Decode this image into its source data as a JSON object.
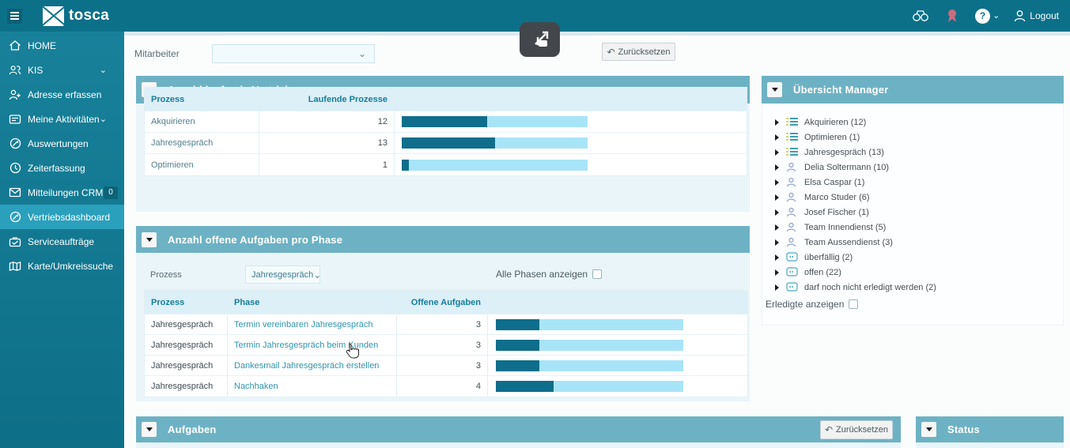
{
  "colors": {
    "accent": "#0c7089",
    "panel_header": "#6db2c4",
    "bar_fill": "#0e6e8c",
    "bar_track": "#a8e4f8",
    "active_nav": "#2aa0bc",
    "badge_bg": "#0b6478",
    "ribbon_red": "#c96c7c"
  },
  "topbar": {
    "brand": "tosca",
    "logout_label": "Logout",
    "help_label": "?"
  },
  "sidebar": {
    "items": [
      {
        "label": "HOME"
      },
      {
        "label": "KIS",
        "chevron": "⌄"
      },
      {
        "label": "Adresse erfassen"
      },
      {
        "label": "Meine Aktivitäten",
        "chevron": "⌄"
      },
      {
        "label": "Auswertungen"
      },
      {
        "label": "Zeiterfassung"
      },
      {
        "label": "Mitteilungen CRM",
        "badge": "0"
      },
      {
        "label": "Vertriebsdashboard"
      },
      {
        "label": "Serviceaufträge"
      },
      {
        "label": "Karte/Umkreissuche"
      }
    ]
  },
  "filter": {
    "label": "Mitarbeiter",
    "value": "",
    "reset_label": "Zurücksetzen",
    "undo_glyph": "↶",
    "chevron": "⌄"
  },
  "panel1": {
    "title": "Anzahl laufende Vertriebsprozesse",
    "columns": {
      "process": "Prozess",
      "running": "Laufende Prozesse"
    },
    "rows": [
      {
        "process": "Akquirieren",
        "count": "12",
        "pct": 46
      },
      {
        "process": "Jahresgespräch",
        "count": "13",
        "pct": 50
      },
      {
        "process": "Optimieren",
        "count": "1",
        "pct": 4
      }
    ]
  },
  "panel2": {
    "title": "Anzahl offene Aufgaben pro Phase",
    "process_label": "Prozess",
    "process_value": "Jahresgespräch",
    "select_chevron": "⌄",
    "all_phases_label": "Alle Phasen anzeigen",
    "columns": {
      "process": "Prozess",
      "phase": "Phase",
      "open": "Offene Aufgaben"
    },
    "rows": [
      {
        "process": "Jahresgespräch",
        "phase": "Termin vereinbaren Jahresgespräch",
        "count": "3",
        "pct": 23
      },
      {
        "process": "Jahresgespräch",
        "phase": "Termin Jahresgespräch beim Kunden",
        "count": "3",
        "pct": 23
      },
      {
        "process": "Jahresgespräch",
        "phase": "Dankesmail Jahresgespräch erstellen",
        "count": "3",
        "pct": 23
      },
      {
        "process": "Jahresgespräch",
        "phase": "Nachhaken",
        "count": "4",
        "pct": 31
      }
    ]
  },
  "manager": {
    "title": "Übersicht Manager",
    "items": [
      {
        "label": "Akquirieren (12)",
        "icon": "list"
      },
      {
        "label": "Optimieren (1)",
        "icon": "list"
      },
      {
        "label": "Jahresgespräch (13)",
        "icon": "list"
      },
      {
        "label": "Delia Soltermann (10)",
        "icon": "person"
      },
      {
        "label": "Elsa Caspar (1)",
        "icon": "person"
      },
      {
        "label": "Marco Studer (6)",
        "icon": "person"
      },
      {
        "label": "Josef Fischer (1)",
        "icon": "person"
      },
      {
        "label": "Team Innendienst (5)",
        "icon": "person"
      },
      {
        "label": "Team Aussendienst (3)",
        "icon": "person"
      },
      {
        "label": "überfällig (2)",
        "icon": "card"
      },
      {
        "label": "offen (22)",
        "icon": "card"
      },
      {
        "label": "darf noch nicht erledigt werden (2)",
        "icon": "card"
      }
    ],
    "done_label": "Erledigte anzeigen"
  },
  "aufgaben": {
    "title": "Aufgaben",
    "reset_label": "Zurücksetzen",
    "undo_glyph": "↶"
  },
  "status": {
    "title": "Status"
  },
  "chart_data": [
    {
      "type": "bar",
      "title": "Anzahl laufende Vertriebsprozesse",
      "categories": [
        "Akquirieren",
        "Jahresgespräch",
        "Optimieren"
      ],
      "values": [
        12,
        13,
        1
      ],
      "xlabel": "Laufende Prozesse",
      "ylabel": "Prozess",
      "orientation": "horizontal",
      "xlim": [
        0,
        26
      ]
    },
    {
      "type": "bar",
      "title": "Anzahl offene Aufgaben pro Phase",
      "categories": [
        "Termin vereinbaren Jahresgespräch",
        "Termin Jahresgespräch beim Kunden",
        "Dankesmail Jahresgespräch erstellen",
        "Nachhaken"
      ],
      "values": [
        3,
        3,
        3,
        4
      ],
      "xlabel": "Offene Aufgaben",
      "ylabel": "Phase",
      "orientation": "horizontal",
      "xlim": [
        0,
        13
      ]
    }
  ]
}
